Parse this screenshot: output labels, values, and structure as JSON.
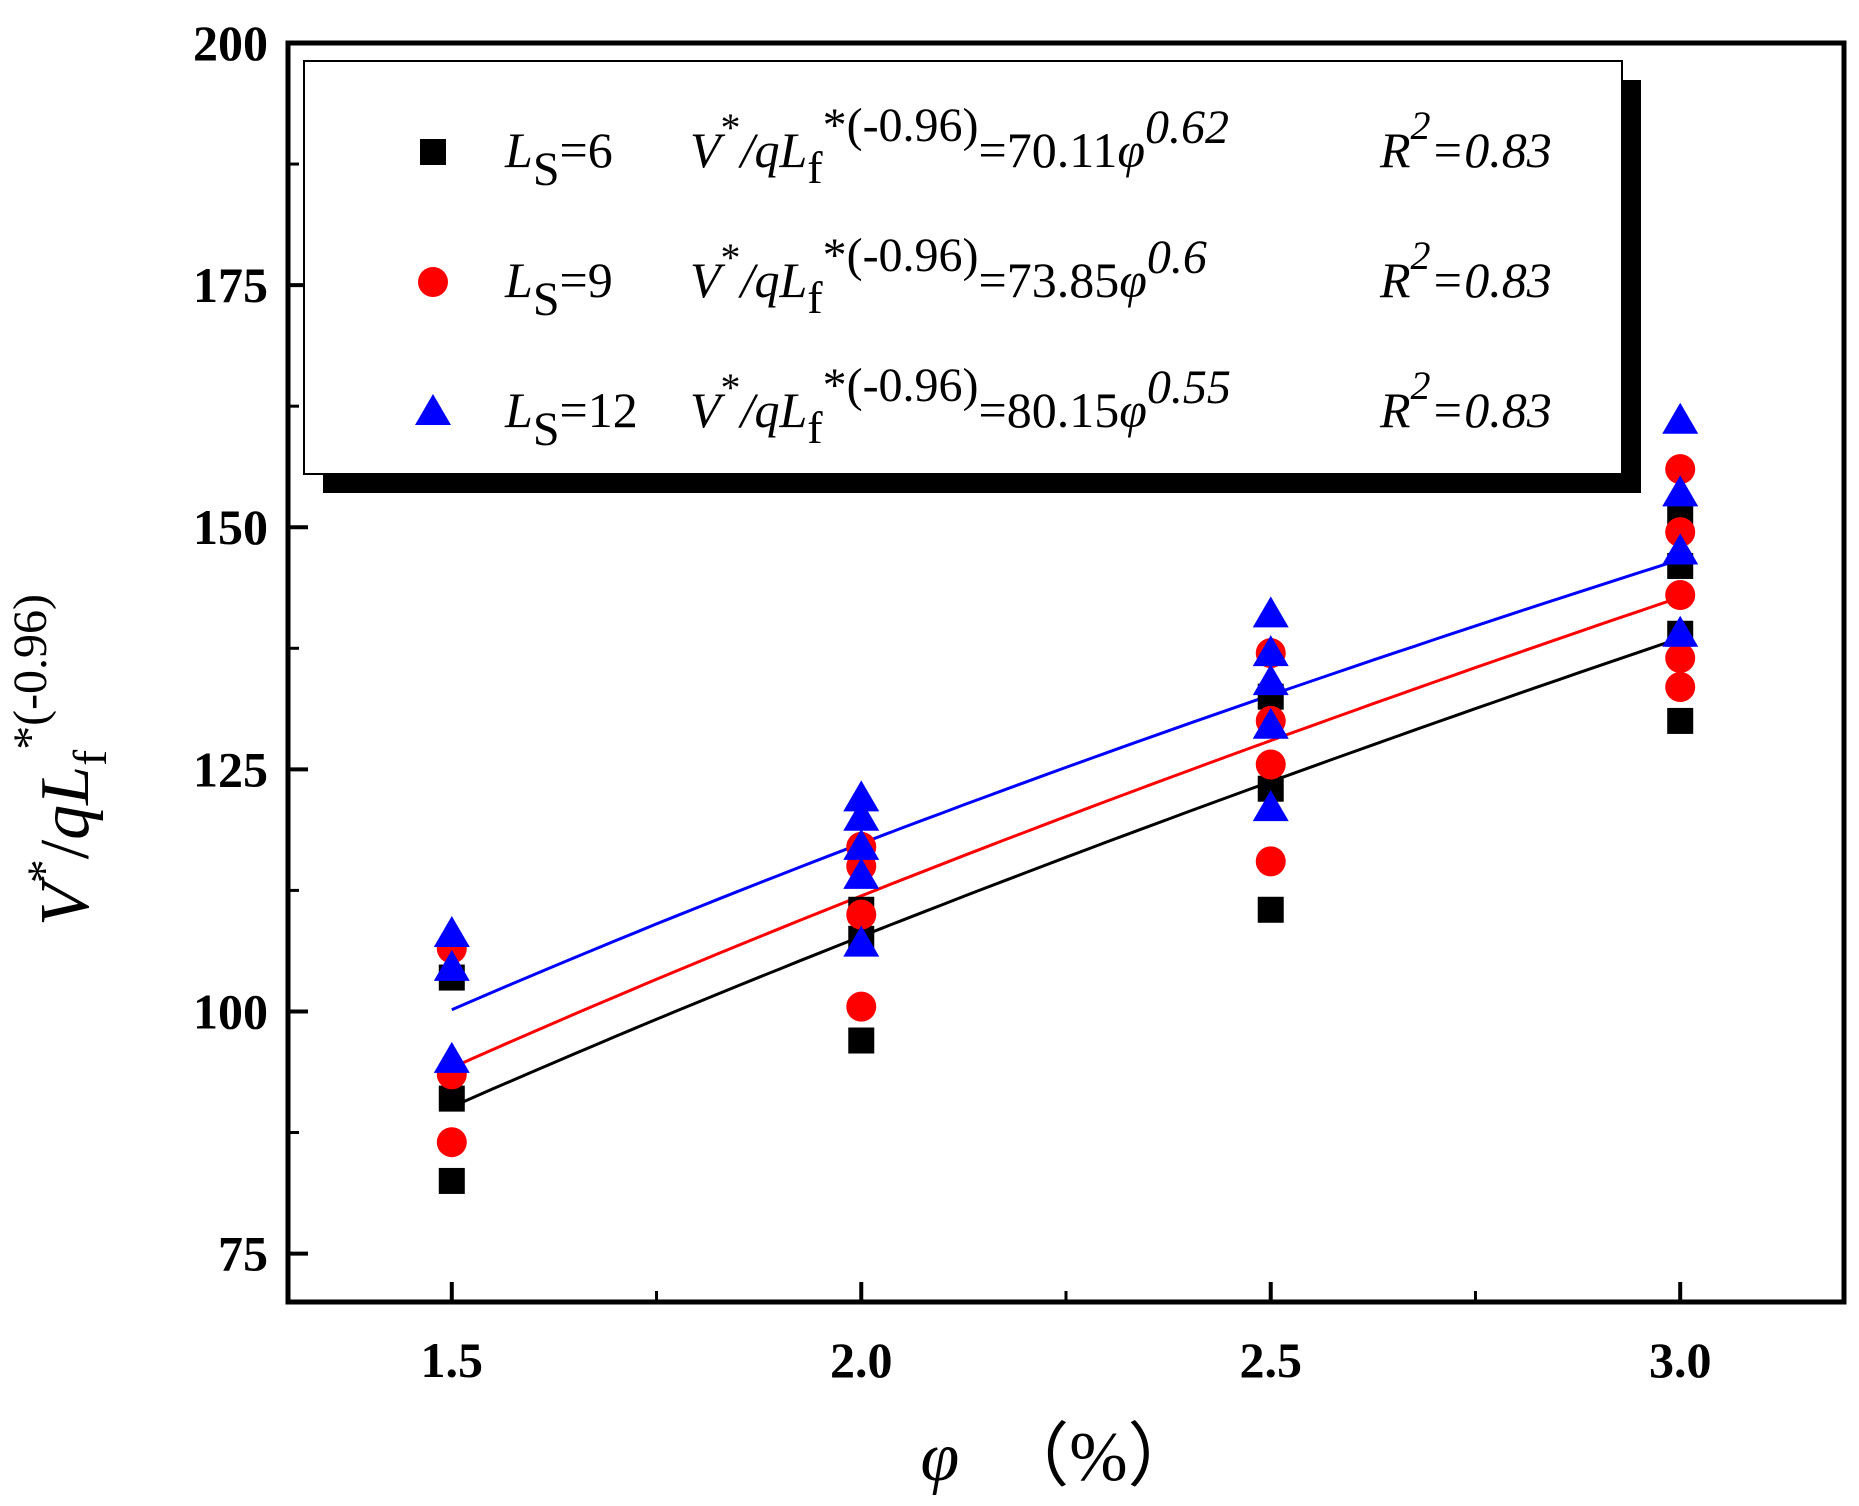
{
  "chart_data": {
    "type": "scatter",
    "xlabel": {
      "symbol": "φ",
      "unit": "（%）"
    },
    "ylabel": {
      "V": "V",
      "star": "*",
      "slash": "/",
      "q": "q",
      "L": "L",
      "sub": "f",
      "sup": "*(-0.96)"
    },
    "xlim": [
      1.3,
      3.2
    ],
    "ylim": [
      70,
      200
    ],
    "xticks": [
      1.5,
      2.0,
      2.5,
      3.0
    ],
    "xtick_labels": [
      "1.5",
      "2.0",
      "2.5",
      "3.0"
    ],
    "yticks": [
      75,
      100,
      125,
      150,
      175,
      200
    ],
    "ytick_labels": [
      "75",
      "100",
      "125",
      "150",
      "175",
      "200"
    ],
    "series": [
      {
        "name": "Ls=6",
        "marker": "square",
        "color": "#000000",
        "points": [
          [
            1.5,
            82.5
          ],
          [
            1.5,
            91
          ],
          [
            1.5,
            103.5
          ],
          [
            2.0,
            97
          ],
          [
            2.0,
            107.5
          ],
          [
            2.0,
            110.5
          ],
          [
            2.5,
            110.5
          ],
          [
            2.5,
            123
          ],
          [
            2.5,
            132.5
          ],
          [
            3.0,
            130
          ],
          [
            3.0,
            139
          ],
          [
            3.0,
            146
          ],
          [
            3.0,
            151
          ]
        ],
        "fit": {
          "a": 70.11,
          "b": 0.62
        },
        "legend": {
          "L": "L",
          "sub": "S",
          "eq_label": "=6",
          "V": "V",
          "star": "*",
          "mid": "/qL",
          "sub_f": "f",
          "exp": "*(-0.96)",
          "coef": "=70.11",
          "phi": "φ",
          "power": "0.62",
          "R": "R",
          "R_sup": "2",
          "R_val": "=0.83"
        }
      },
      {
        "name": "Ls=9",
        "marker": "circle",
        "color": "#ff0000",
        "points": [
          [
            1.5,
            86.5
          ],
          [
            1.5,
            93.5
          ],
          [
            1.5,
            106.5
          ],
          [
            2.0,
            100.5
          ],
          [
            2.0,
            110
          ],
          [
            2.0,
            115
          ],
          [
            2.0,
            117
          ],
          [
            2.5,
            115.5
          ],
          [
            2.5,
            125.5
          ],
          [
            2.5,
            130
          ],
          [
            2.5,
            137
          ],
          [
            3.0,
            133.5
          ],
          [
            3.0,
            136.5
          ],
          [
            3.0,
            143
          ],
          [
            3.0,
            149.5
          ],
          [
            3.0,
            156
          ]
        ],
        "fit": {
          "a": 73.85,
          "b": 0.6
        },
        "legend": {
          "L": "L",
          "sub": "S",
          "eq_label": "=9",
          "V": "V",
          "star": "*",
          "mid": "/qL",
          "sub_f": "f",
          "exp": "*(-0.96)",
          "coef": "=73.85",
          "phi": "φ",
          "power": "0.6",
          "R": "R",
          "R_sup": "2",
          "R_val": "=0.83"
        }
      },
      {
        "name": "Ls=12",
        "marker": "triangle",
        "color": "#0000ff",
        "points": [
          [
            1.5,
            95
          ],
          [
            1.5,
            104.5
          ],
          [
            1.5,
            108
          ],
          [
            2.0,
            107
          ],
          [
            2.0,
            114
          ],
          [
            2.0,
            117
          ],
          [
            2.0,
            120
          ],
          [
            2.0,
            122
          ],
          [
            2.5,
            121
          ],
          [
            2.5,
            129.5
          ],
          [
            2.5,
            134
          ],
          [
            2.5,
            137
          ],
          [
            2.5,
            141
          ],
          [
            3.0,
            139
          ],
          [
            3.0,
            147.5
          ],
          [
            3.0,
            153.5
          ],
          [
            3.0,
            161
          ]
        ],
        "fit": {
          "a": 80.15,
          "b": 0.55
        },
        "legend": {
          "L": "L",
          "sub": "S",
          "eq_label": "=12",
          "V": "V",
          "star": "*",
          "mid": "/qL",
          "sub_f": "f",
          "exp": "*(-0.96)",
          "coef": "=80.15",
          "phi": "φ",
          "power": "0.55",
          "R": "R",
          "R_sup": "2",
          "R_val": "=0.83"
        }
      }
    ]
  }
}
